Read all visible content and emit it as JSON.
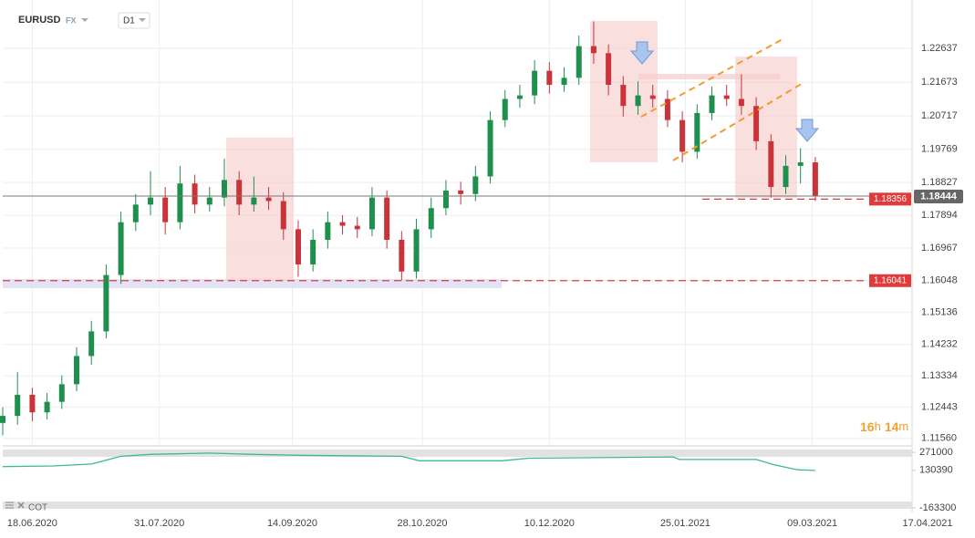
{
  "header": {
    "symbol": "EURUSD",
    "market": "FX",
    "timeframe": "D1"
  },
  "chart_data": [
    {
      "type": "candlestick",
      "x": [
        "2020-06-08",
        "2020-06-13",
        "2020-06-18",
        "2020-06-23",
        "2020-06-28",
        "2020-07-03",
        "2020-07-08",
        "2020-07-13",
        "2020-07-18",
        "2020-07-23",
        "2020-07-28",
        "2020-08-02",
        "2020-08-07",
        "2020-08-12",
        "2020-08-17",
        "2020-08-22",
        "2020-08-27",
        "2020-09-01",
        "2020-09-06",
        "2020-09-11",
        "2020-09-16",
        "2020-09-21",
        "2020-09-26",
        "2020-10-01",
        "2020-10-06",
        "2020-10-11",
        "2020-10-16",
        "2020-10-21",
        "2020-10-26",
        "2020-10-31",
        "2020-11-05",
        "2020-11-10",
        "2020-11-15",
        "2020-11-20",
        "2020-11-25",
        "2020-11-30",
        "2020-12-05",
        "2020-12-10",
        "2020-12-15",
        "2020-12-20",
        "2020-12-25",
        "2020-12-30",
        "2021-01-04",
        "2021-01-09",
        "2021-01-14",
        "2021-01-19",
        "2021-01-24",
        "2021-01-29",
        "2021-02-03",
        "2021-02-08",
        "2021-02-13",
        "2021-02-18",
        "2021-02-23",
        "2021-02-28",
        "2021-03-05",
        "2021-03-10"
      ],
      "open": [
        1.12,
        1.122,
        1.128,
        1.123,
        1.126,
        1.131,
        1.139,
        1.146,
        1.162,
        1.177,
        1.182,
        1.184,
        1.177,
        1.188,
        1.182,
        1.184,
        1.189,
        1.182,
        1.184,
        1.183,
        1.175,
        1.165,
        1.172,
        1.177,
        1.176,
        1.175,
        1.184,
        1.172,
        1.163,
        1.175,
        1.181,
        1.186,
        1.185,
        1.19,
        1.206,
        1.212,
        1.213,
        1.22,
        1.216,
        1.218,
        1.227,
        1.225,
        1.216,
        1.21,
        1.213,
        1.212,
        1.206,
        1.197,
        1.208,
        1.213,
        1.212,
        1.21,
        1.2,
        1.187,
        1.193,
        1.194
      ],
      "high": [
        1.1245,
        1.1345,
        1.13,
        1.1285,
        1.1335,
        1.1415,
        1.149,
        1.165,
        1.18,
        1.185,
        1.1915,
        1.187,
        1.193,
        1.1905,
        1.187,
        1.195,
        1.1915,
        1.19,
        1.187,
        1.1855,
        1.1775,
        1.175,
        1.18,
        1.179,
        1.1785,
        1.187,
        1.186,
        1.1745,
        1.178,
        1.184,
        1.189,
        1.1885,
        1.193,
        1.2085,
        1.2145,
        1.216,
        1.223,
        1.2225,
        1.221,
        1.23,
        1.234,
        1.2275,
        1.2185,
        1.217,
        1.216,
        1.2145,
        1.2085,
        1.2105,
        1.2155,
        1.216,
        1.219,
        1.2125,
        1.202,
        1.196,
        1.198,
        1.1955
      ],
      "low": [
        1.1165,
        1.1195,
        1.1205,
        1.121,
        1.124,
        1.129,
        1.1365,
        1.144,
        1.1595,
        1.1745,
        1.179,
        1.1735,
        1.175,
        1.1795,
        1.18,
        1.1815,
        1.179,
        1.18,
        1.1805,
        1.172,
        1.1615,
        1.163,
        1.1695,
        1.1735,
        1.1725,
        1.173,
        1.1695,
        1.1605,
        1.161,
        1.1725,
        1.179,
        1.182,
        1.183,
        1.188,
        1.204,
        1.2095,
        1.2105,
        1.2135,
        1.214,
        1.216,
        1.222,
        1.213,
        1.207,
        1.2075,
        1.2095,
        1.204,
        1.194,
        1.195,
        1.206,
        1.21,
        1.2075,
        1.1975,
        1.184,
        1.185,
        1.188,
        1.183
      ],
      "close": [
        1.122,
        1.128,
        1.123,
        1.126,
        1.131,
        1.139,
        1.146,
        1.162,
        1.177,
        1.182,
        1.184,
        1.177,
        1.188,
        1.182,
        1.184,
        1.189,
        1.182,
        1.184,
        1.183,
        1.175,
        1.165,
        1.172,
        1.177,
        1.176,
        1.175,
        1.184,
        1.172,
        1.163,
        1.175,
        1.181,
        1.186,
        1.185,
        1.19,
        1.206,
        1.212,
        1.213,
        1.22,
        1.216,
        1.218,
        1.227,
        1.225,
        1.216,
        1.21,
        1.213,
        1.212,
        1.206,
        1.197,
        1.208,
        1.213,
        1.212,
        1.21,
        1.2,
        1.187,
        1.193,
        1.194,
        1.1844
      ],
      "colors": {
        "up": "#1f8f4e",
        "down": "#c9343a"
      },
      "xlim": [
        "2020-06-08",
        "2021-04-17"
      ],
      "xticks": [
        {
          "value": "2020-06-18",
          "label": "18.06.2020"
        },
        {
          "value": "2020-07-31",
          "label": "31.07.2020"
        },
        {
          "value": "2020-09-14",
          "label": "14.09.2020"
        },
        {
          "value": "2020-10-28",
          "label": "28.10.2020"
        },
        {
          "value": "2020-12-10",
          "label": "10.12.2020"
        },
        {
          "value": "2021-01-25",
          "label": "25.01.2021"
        },
        {
          "value": "2021-03-09",
          "label": "09.03.2021"
        },
        {
          "value": "2021-04-17",
          "label": "17.04.2021"
        }
      ],
      "ylim": [
        1.114,
        1.2388
      ],
      "yticks": [
        1.22637,
        1.21673,
        1.20717,
        1.19769,
        1.18827,
        1.17894,
        1.16967,
        1.16048,
        1.15136,
        1.14232,
        1.13334,
        1.12443,
        {
          "value": 1.1156,
          "label": "1.11560"
        }
      ],
      "grid": true,
      "last_price": 1.18444,
      "levels": [
        {
          "value": 1.18356,
          "color": "#e03a3a"
        },
        {
          "value": 1.16041,
          "color": "#e03a3a"
        }
      ],
      "countdown": [
        "16",
        "h",
        "14",
        "m"
      ]
    },
    {
      "type": "line",
      "name": "COT",
      "color": "#3dbb8c",
      "x": [
        "2020-06-08",
        "2020-06-25",
        "2020-07-08",
        "2020-07-18",
        "2020-07-28",
        "2020-08-17",
        "2020-09-01",
        "2020-09-17",
        "2020-10-21",
        "2020-10-27",
        "2020-11-24",
        "2020-12-03",
        "2021-01-21",
        "2021-01-23",
        "2021-02-18",
        "2021-02-24",
        "2021-03-04",
        "2021-03-10"
      ],
      "values": [
        160000,
        165000,
        180000,
        240000,
        255000,
        265000,
        255000,
        248000,
        240000,
        205000,
        205000,
        225000,
        235000,
        215000,
        215000,
        175000,
        135000,
        130000
      ],
      "xlim": [
        "2020-06-08",
        "2021-04-17"
      ],
      "ylim": [
        -170000,
        300000
      ],
      "yticks": [
        271000,
        130390,
        -163300
      ]
    }
  ]
}
